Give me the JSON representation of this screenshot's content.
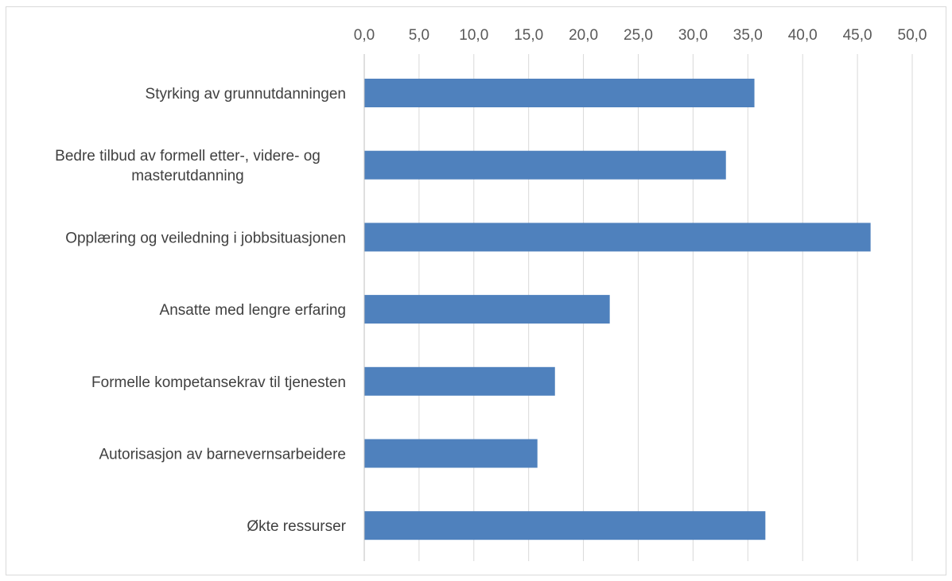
{
  "chart_data": {
    "type": "bar",
    "orientation": "horizontal",
    "title": "",
    "xlabel": "",
    "ylabel": "",
    "categories": [
      [
        "Styrking av grunnutdanningen"
      ],
      [
        "Bedre tilbud av formell etter-, videre- og",
        "masterutdanning"
      ],
      [
        "Opplæring og veiledning i jobbsituasjonen"
      ],
      [
        "Ansatte med lengre erfaring"
      ],
      [
        "Formelle kompetansekrav til tjenesten"
      ],
      [
        "Autorisasjon av barnevernsarbeidere"
      ],
      [
        "Økte ressurser"
      ]
    ],
    "values": [
      35.6,
      33.0,
      46.2,
      22.4,
      17.4,
      15.8,
      36.6
    ],
    "xlim": [
      0,
      50
    ],
    "x_ticks": [
      "0,0",
      "5,0",
      "10,0",
      "15,0",
      "20,0",
      "25,0",
      "30,0",
      "35,0",
      "40,0",
      "45,0",
      "50,0"
    ],
    "x_axis_position": "top",
    "grid": "vertical",
    "legend": "none",
    "bar_color": "#4f81bd",
    "grid_color": "#d9d9d9"
  }
}
